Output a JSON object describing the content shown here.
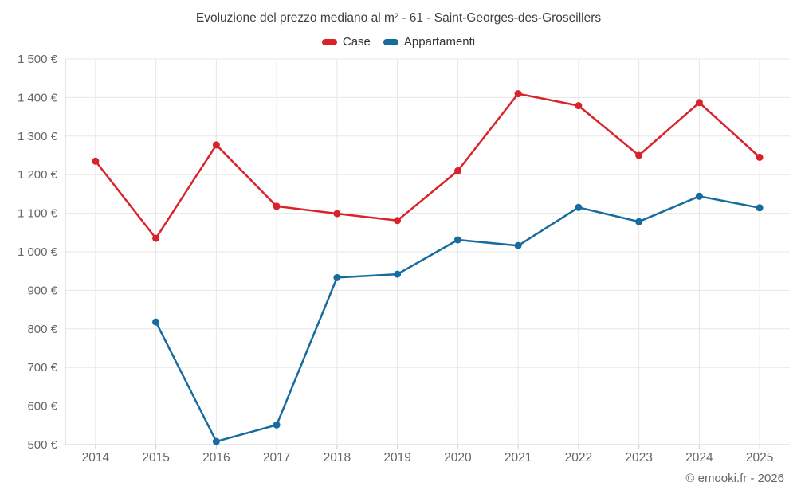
{
  "page": {
    "title": "Evoluzione del prezzo mediano al m² - 61 - Saint-Georges-des-Groseillers",
    "attribution": "© emooki.fr - 2026"
  },
  "legend": {
    "items": [
      {
        "label": "Case",
        "color": "#d9232b"
      },
      {
        "label": "Appartamenti",
        "color": "#166b9f"
      }
    ]
  },
  "chart_data": {
    "type": "line",
    "title": "Evoluzione del prezzo mediano al m² - 61 - Saint-Georges-des-Groseillers",
    "categories": [
      "2014",
      "2015",
      "2016",
      "2017",
      "2018",
      "2019",
      "2020",
      "2021",
      "2022",
      "2023",
      "2024",
      "2025"
    ],
    "series": [
      {
        "name": "Case",
        "color": "#d9232b",
        "values": [
          1235,
          1035,
          1277,
          1118,
          1099,
          1081,
          1210,
          1410,
          1379,
          1250,
          1387,
          1245
        ]
      },
      {
        "name": "Appartamenti",
        "color": "#166b9f",
        "values": [
          null,
          818,
          508,
          551,
          933,
          942,
          1031,
          1016,
          1115,
          1078,
          1144,
          1114
        ]
      }
    ],
    "xlabel": "",
    "ylabel": "",
    "ylim": [
      500,
      1500
    ],
    "ytick_step": 100,
    "yticks": [
      {
        "value": 1500,
        "label": "1 500 €"
      },
      {
        "value": 1400,
        "label": "1 400 €"
      },
      {
        "value": 1300,
        "label": "1 300 €"
      },
      {
        "value": 1200,
        "label": "1 200 €"
      },
      {
        "value": 1100,
        "label": "1 100 €"
      },
      {
        "value": 1000,
        "label": "1 000 €"
      },
      {
        "value": 900,
        "label": "900 €"
      },
      {
        "value": 800,
        "label": "800 €"
      },
      {
        "value": 700,
        "label": "700 €"
      },
      {
        "value": 600,
        "label": "600 €"
      },
      {
        "value": 500,
        "label": "500 €"
      }
    ],
    "grid": true,
    "legend_position": "top",
    "colors": {
      "grid_line": "#e7e7e7",
      "axis_line": "#cccccc",
      "tick_label": "#666666",
      "title_text": "#3f3f3f",
      "legend_text": "#333333",
      "background": "#ffffff"
    }
  }
}
